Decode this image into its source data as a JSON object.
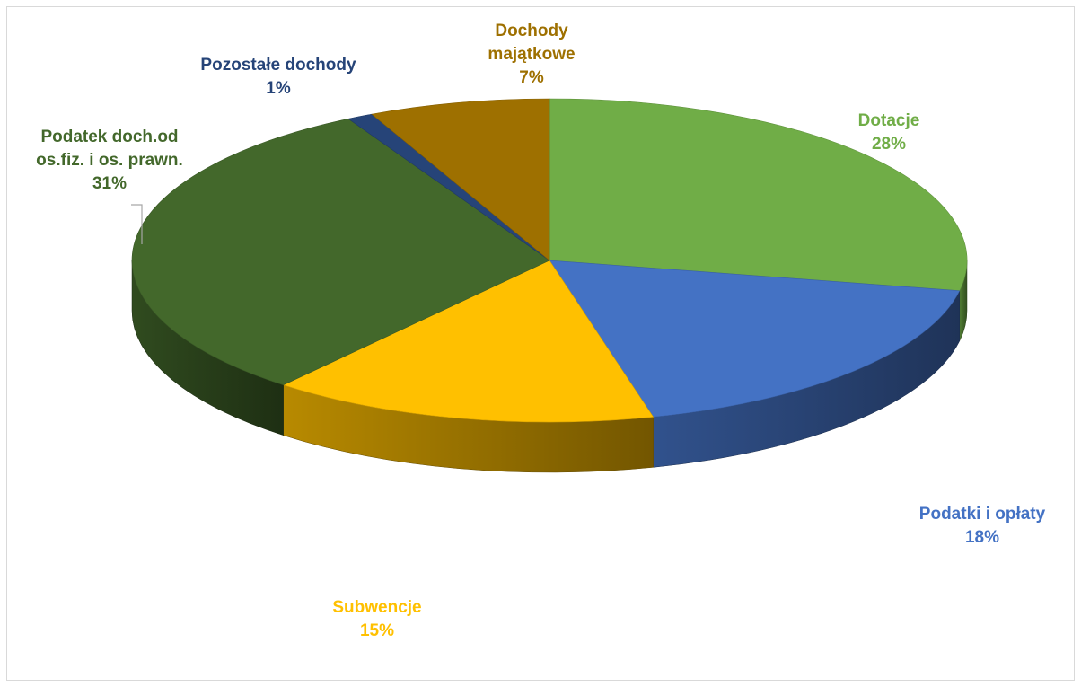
{
  "chart_data": {
    "type": "pie",
    "title": "",
    "slices": [
      {
        "name": "Dotacje",
        "percent_label": "28%",
        "value": 28,
        "color": "#70ad47"
      },
      {
        "name": "Podatki i opłaty",
        "percent_label": "18%",
        "value": 18,
        "color": "#4472c4"
      },
      {
        "name": "Subwencje",
        "percent_label": "15%",
        "value": 15,
        "color": "#ffc000"
      },
      {
        "name": "Podatek doch.od os.fiz. i os. prawn.",
        "percent_label": "31%",
        "value": 31,
        "color": "#43682b"
      },
      {
        "name": "Pozostałe dochody",
        "percent_label": "1%",
        "value": 1,
        "color": "#264478"
      },
      {
        "name": "Dochody majątkowe",
        "percent_label": "7%",
        "value": 7,
        "color": "#9e7000"
      }
    ],
    "label_lines": {
      "Dotacje": [
        "Dotacje"
      ],
      "Podatki i opłaty": [
        "Podatki i opłaty"
      ],
      "Subwencje": [
        "Subwencje"
      ],
      "Podatek doch.od os.fiz. i os. prawn.": [
        "Podatek doch.od",
        "os.fiz. i os. prawn."
      ],
      "Pozostałe dochody": [
        "Pozostałe dochody"
      ],
      "Dochody majątkowe": [
        "Dochody",
        "majątkowe"
      ]
    }
  }
}
